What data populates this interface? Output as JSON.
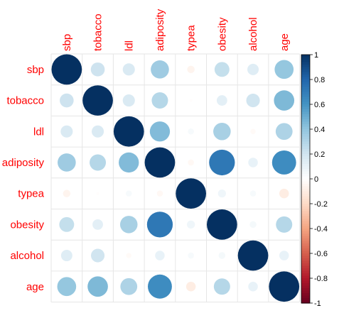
{
  "chart_data": {
    "type": "heatmap",
    "title": "",
    "xlabel": "",
    "ylabel": "",
    "variables": [
      "sbp",
      "tobacco",
      "ldl",
      "adiposity",
      "typea",
      "obesity",
      "alcohol",
      "age"
    ],
    "matrix": [
      [
        1.0,
        0.21,
        0.16,
        0.36,
        -0.06,
        0.24,
        0.14,
        0.39
      ],
      [
        0.21,
        1.0,
        0.16,
        0.29,
        -0.01,
        0.12,
        0.2,
        0.45
      ],
      [
        0.16,
        0.16,
        1.0,
        0.44,
        0.04,
        0.33,
        -0.03,
        0.31
      ],
      [
        0.36,
        0.29,
        0.44,
        1.0,
        -0.04,
        0.72,
        0.1,
        0.63
      ],
      [
        -0.06,
        -0.01,
        0.04,
        -0.04,
        1.0,
        0.07,
        0.04,
        -0.1
      ],
      [
        0.24,
        0.12,
        0.33,
        0.72,
        0.07,
        1.0,
        0.05,
        0.29
      ],
      [
        0.14,
        0.2,
        -0.03,
        0.1,
        0.04,
        0.05,
        1.0,
        0.1
      ],
      [
        0.39,
        0.45,
        0.31,
        0.63,
        -0.1,
        0.29,
        0.1,
        1.0
      ]
    ],
    "colorbar": {
      "ticks": [
        "1",
        "0.8",
        "0.6",
        "0.4",
        "0.2",
        "0",
        "-0.2",
        "-0.4",
        "-0.6",
        "-0.8",
        "-1"
      ],
      "range": [
        -1,
        1
      ]
    },
    "colors": {
      "negative": "#67001f",
      "neutral": "#ffffff",
      "positive": "#053061",
      "label": "#ff0000",
      "grid": "#e6e6e6"
    },
    "grid": true,
    "legend_placement": "right"
  }
}
